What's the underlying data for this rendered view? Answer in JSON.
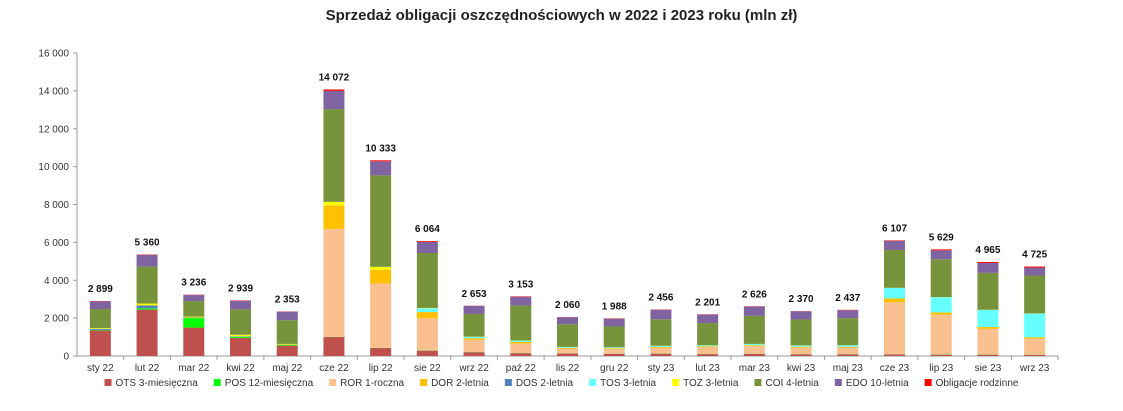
{
  "chart_data": {
    "type": "bar",
    "stacked": true,
    "title": "Sprzedaż obligacji oszczędnościowych w 2022 i 2023 roku (mln zł)",
    "xlabel": "",
    "ylabel": "",
    "ylim": [
      0,
      16000
    ],
    "yticks": [
      0,
      2000,
      4000,
      6000,
      8000,
      10000,
      12000,
      14000,
      16000
    ],
    "ytick_labels": [
      "0",
      "2 000",
      "4 000",
      "6 000",
      "8 000",
      "10 000",
      "12 000",
      "14 000",
      "16 000"
    ],
    "grid": false,
    "legend_position": "bottom",
    "categories": [
      "sty 22",
      "lut 22",
      "mar 22",
      "kwi 22",
      "maj 22",
      "cze 22",
      "lip 22",
      "sie 22",
      "wrz 22",
      "paź 22",
      "lis 22",
      "gru 22",
      "sty 23",
      "lut 23",
      "mar 23",
      "kwi 23",
      "maj 23",
      "cze 23",
      "lip 23",
      "sie 23",
      "wrz 23"
    ],
    "totals": [
      2899,
      5360,
      3236,
      2939,
      2353,
      14072,
      10333,
      6064,
      2653,
      3153,
      2060,
      1988,
      2456,
      2201,
      2626,
      2370,
      2437,
      6107,
      5629,
      4965,
      4725
    ],
    "total_labels": [
      "2 899",
      "5 360",
      "3 236",
      "2 939",
      "2 353",
      "14 072",
      "10 333",
      "6 064",
      "2 653",
      "3 153",
      "2 060",
      "1 988",
      "2 456",
      "2 201",
      "2 626",
      "2 370",
      "2 437",
      "6 107",
      "5 629",
      "4 965",
      "4 725"
    ],
    "series": [
      {
        "name": "OTS 3-miesięczna",
        "color": "#c0504d",
        "values": [
          1350,
          2450,
          1500,
          950,
          550,
          1000,
          420,
          280,
          200,
          150,
          130,
          110,
          120,
          100,
          110,
          90,
          90,
          80,
          70,
          70,
          60
        ]
      },
      {
        "name": "POS 12-miesięczna",
        "color": "#00ff00",
        "values": [
          30,
          70,
          500,
          60,
          30,
          10,
          10,
          10,
          10,
          10,
          10,
          10,
          10,
          10,
          10,
          10,
          10,
          10,
          10,
          10,
          10
        ]
      },
      {
        "name": "ROR 1-roczna",
        "color": "#fac090",
        "values": [
          0,
          0,
          0,
          0,
          0,
          5700,
          3400,
          1700,
          650,
          500,
          250,
          250,
          300,
          350,
          400,
          350,
          350,
          2750,
          2100,
          1350,
          850
        ]
      },
      {
        "name": "DOR 2-letnia",
        "color": "#ffc000",
        "values": [
          0,
          0,
          0,
          0,
          0,
          1250,
          720,
          330,
          80,
          80,
          40,
          40,
          50,
          50,
          50,
          40,
          40,
          200,
          120,
          100,
          70
        ]
      },
      {
        "name": "DOS 2-letnia",
        "color": "#4f81bd",
        "values": [
          60,
          150,
          30,
          30,
          20,
          0,
          0,
          0,
          0,
          0,
          0,
          0,
          0,
          0,
          0,
          0,
          0,
          0,
          0,
          0,
          0
        ]
      },
      {
        "name": "TOS 3-letnia",
        "color": "#66ffff",
        "values": [
          0,
          0,
          0,
          0,
          0,
          0,
          0,
          200,
          70,
          70,
          40,
          40,
          50,
          50,
          60,
          60,
          70,
          550,
          800,
          900,
          1250
        ]
      },
      {
        "name": "TOZ 3-letnia",
        "color": "#ffff00",
        "values": [
          40,
          100,
          50,
          80,
          40,
          180,
          160,
          20,
          10,
          10,
          10,
          10,
          10,
          10,
          10,
          10,
          10,
          10,
          10,
          10,
          10
        ]
      },
      {
        "name": "COI 4-letnia",
        "color": "#77933c",
        "values": [
          1000,
          1950,
          820,
          1350,
          1250,
          4900,
          4830,
          2900,
          1200,
          1850,
          1200,
          1100,
          1400,
          1170,
          1480,
          1370,
          1430,
          2000,
          2000,
          1950,
          2000
        ]
      },
      {
        "name": "EDO 10-letnia",
        "color": "#8064a2",
        "values": [
          400,
          620,
          320,
          450,
          450,
          960,
          740,
          580,
          420,
          460,
          370,
          410,
          500,
          450,
          490,
          430,
          420,
          480,
          470,
          520,
          420
        ]
      },
      {
        "name": "Obligacje rodzinne",
        "color": "#ff0000",
        "values": [
          19,
          20,
          16,
          19,
          13,
          72,
          53,
          44,
          13,
          23,
          10,
          18,
          16,
          11,
          16,
          10,
          17,
          27,
          49,
          55,
          55
        ]
      }
    ]
  }
}
